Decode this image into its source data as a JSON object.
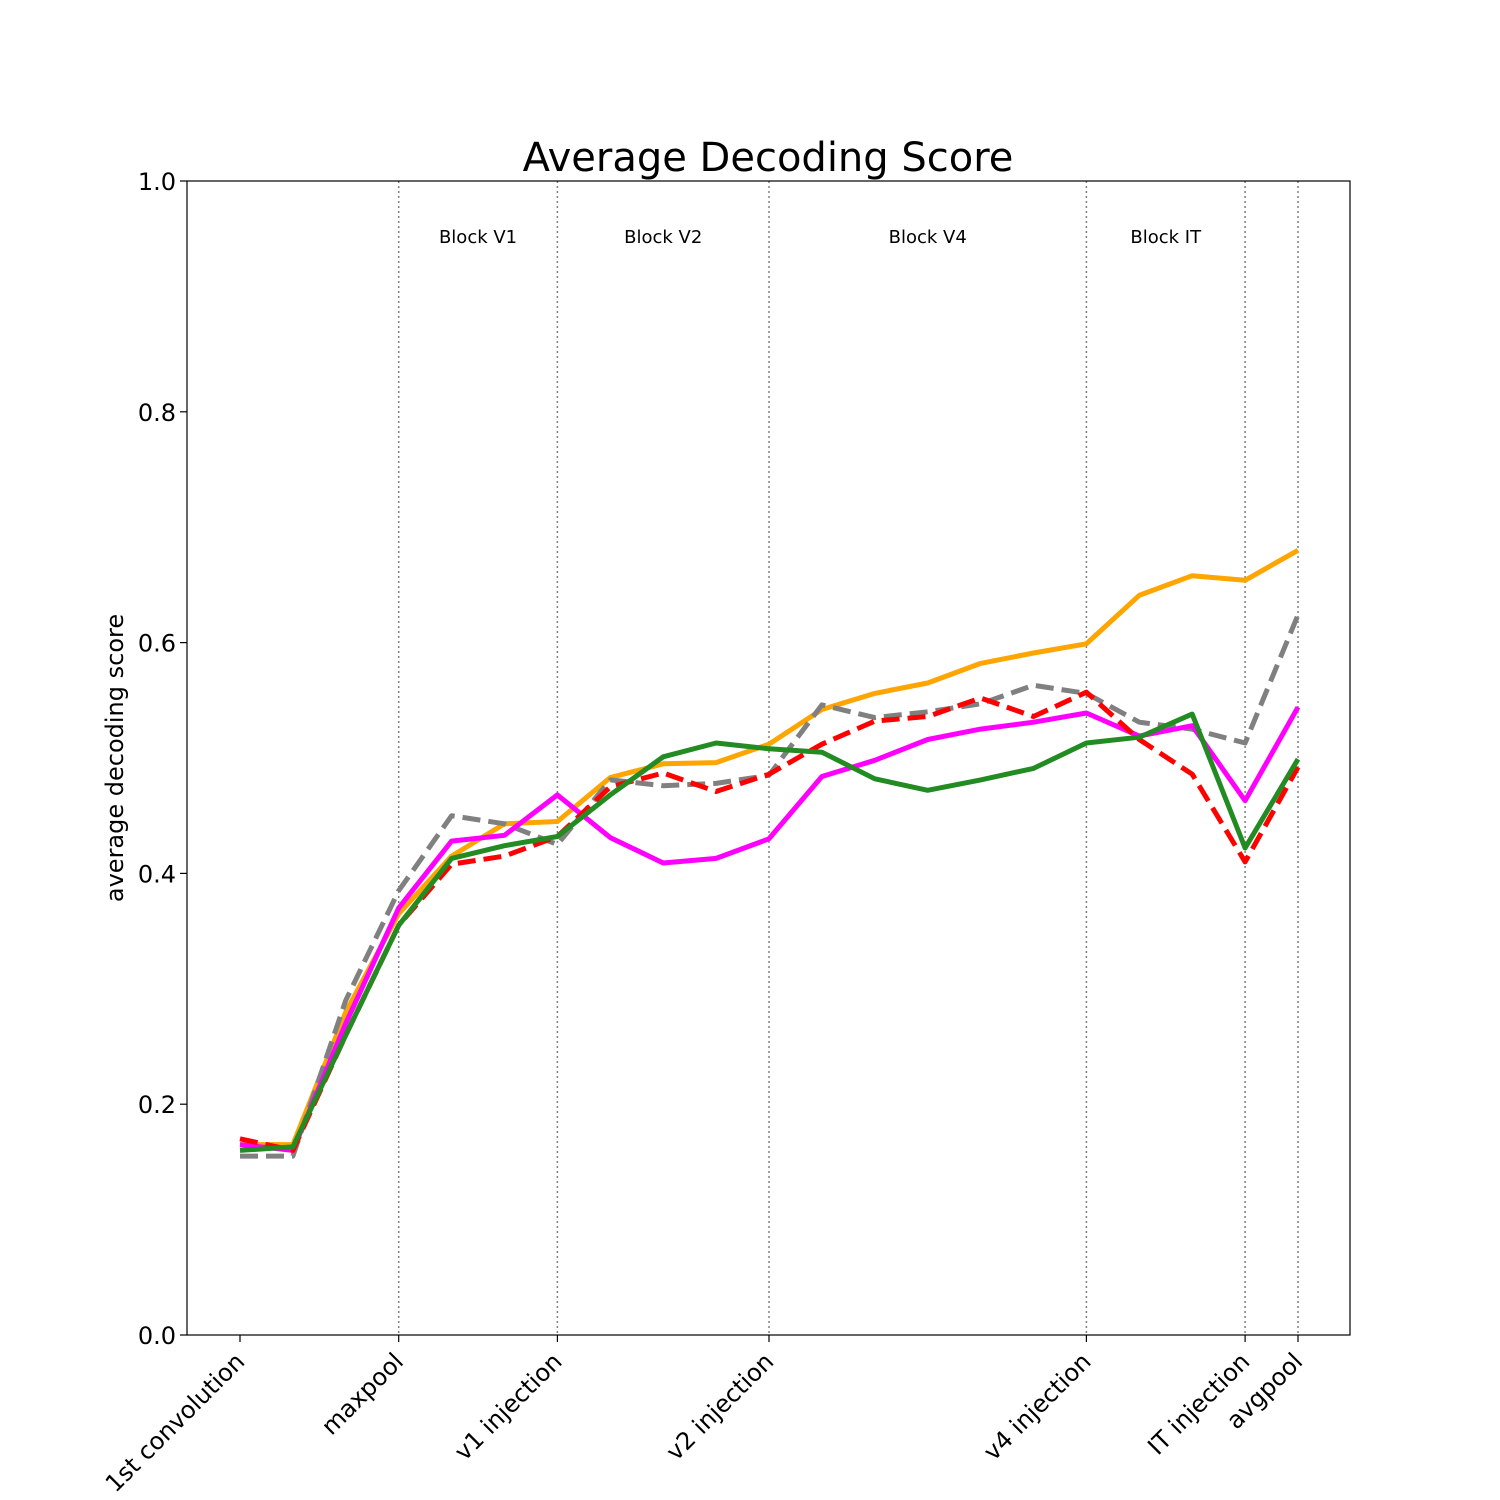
{
  "chart_data": {
    "type": "line",
    "title": "Average Decoding Score",
    "xlabel": "",
    "ylabel": "average decoding score",
    "ylim": [
      0.0,
      1.0
    ],
    "yticks": [
      "0.0",
      "0.2",
      "0.4",
      "0.6",
      "0.8",
      "1.0"
    ],
    "x_positions": [
      0,
      1,
      2,
      3,
      4,
      5,
      6,
      7,
      8,
      9,
      10,
      11,
      12,
      13,
      14,
      15,
      16,
      17,
      18,
      19,
      20
    ],
    "x_tick_labels": [
      {
        "pos": 0,
        "label": "1st convolution"
      },
      {
        "pos": 3,
        "label": "maxpool"
      },
      {
        "pos": 6,
        "label": "v1 injection"
      },
      {
        "pos": 10,
        "label": "v2 injection"
      },
      {
        "pos": 16,
        "label": "v4 injection"
      },
      {
        "pos": 19,
        "label": "IT injection"
      },
      {
        "pos": 20,
        "label": "avgpool"
      }
    ],
    "vlines": [
      3,
      6,
      10,
      16,
      19,
      20
    ],
    "blocks": [
      {
        "label": "Block V1",
        "start": 3,
        "end": 6
      },
      {
        "label": "Block V2",
        "start": 6,
        "end": 10
      },
      {
        "label": "Block V4",
        "start": 10,
        "end": 16
      },
      {
        "label": "Block IT",
        "start": 16,
        "end": 19
      }
    ],
    "grid": false,
    "series": [
      {
        "color": "#ffa500",
        "dash": "solid",
        "values": [
          0.165,
          0.165,
          0.28,
          0.365,
          0.415,
          0.443,
          0.445,
          0.483,
          0.495,
          0.496,
          0.512,
          0.542,
          0.556,
          0.565,
          0.582,
          0.591,
          0.599,
          0.641,
          0.658,
          0.654,
          0.68
        ]
      },
      {
        "color": "#808080",
        "dash": "dashed",
        "values": [
          0.155,
          0.155,
          0.29,
          0.385,
          0.45,
          0.443,
          0.425,
          0.481,
          0.476,
          0.478,
          0.485,
          0.546,
          0.535,
          0.54,
          0.547,
          0.563,
          0.556,
          0.531,
          0.525,
          0.513,
          0.624
        ]
      },
      {
        "color": "#ff00ff",
        "dash": "solid",
        "values": [
          0.165,
          0.16,
          0.27,
          0.37,
          0.428,
          0.433,
          0.468,
          0.431,
          0.409,
          0.413,
          0.43,
          0.484,
          0.498,
          0.516,
          0.525,
          0.531,
          0.539,
          0.519,
          0.528,
          0.463,
          0.544
        ]
      },
      {
        "color": "#ff0000",
        "dash": "dashed",
        "values": [
          0.17,
          0.16,
          0.26,
          0.355,
          0.408,
          0.415,
          0.432,
          0.475,
          0.487,
          0.471,
          0.486,
          0.512,
          0.532,
          0.536,
          0.552,
          0.536,
          0.557,
          0.516,
          0.486,
          0.41,
          0.492
        ]
      },
      {
        "color": "#228b22",
        "dash": "solid",
        "values": [
          0.16,
          0.163,
          0.26,
          0.355,
          0.413,
          0.424,
          0.432,
          0.468,
          0.501,
          0.513,
          0.508,
          0.505,
          0.482,
          0.472,
          0.481,
          0.491,
          0.513,
          0.518,
          0.538,
          0.422,
          0.499
        ]
      }
    ]
  }
}
